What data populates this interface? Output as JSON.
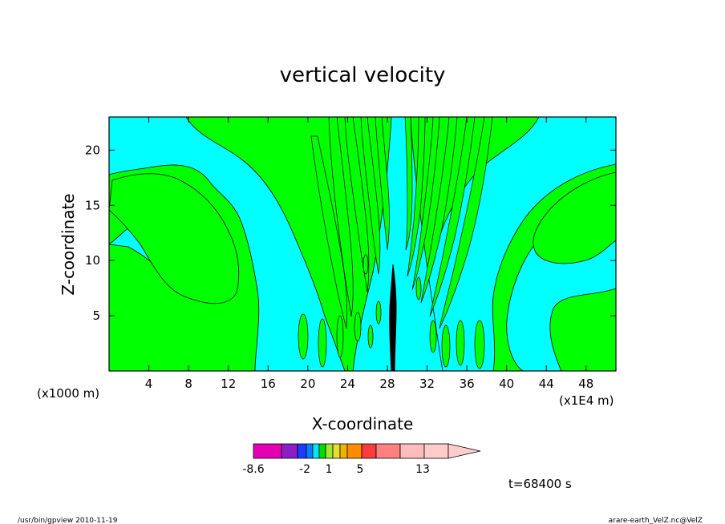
{
  "chart_data": {
    "type": "heatmap",
    "subtype": "filled-contour",
    "title": "vertical velocity",
    "xlabel": "X-coordinate",
    "ylabel": "Z-coordinate",
    "x_unit_left": "(x1000 m)",
    "x_unit_right": "(x1E4 m)",
    "x_ticks": [
      "4",
      "8",
      "12",
      "16",
      "20",
      "24",
      "28",
      "32",
      "36",
      "40",
      "44",
      "48"
    ],
    "x_tick_values": [
      4,
      8,
      12,
      16,
      20,
      24,
      28,
      32,
      36,
      40,
      44,
      48
    ],
    "xlim": [
      0,
      51
    ],
    "y_ticks": [
      "5",
      "10",
      "15",
      "20"
    ],
    "y_tick_values": [
      5,
      10,
      15,
      20
    ],
    "ylim": [
      0,
      23
    ],
    "time_label": "t=68400 s",
    "colorbar": {
      "tick_labels": [
        "-8.6",
        "-2",
        "1",
        "5",
        "13"
      ],
      "colors": [
        "#e600b4",
        "#8c1ec8",
        "#1e3cff",
        "#0080ff",
        "#00e6ff",
        "#00dc00",
        "#a0e632",
        "#e6dc32",
        "#f0b400",
        "#ff8c00",
        "#fa3c3c",
        "#ff8080",
        "#ffbcbc",
        "#ffcccc"
      ],
      "extend": "max"
    },
    "dominant_fields": {
      "green_color": "#00ff00",
      "cyan_color": "#00ffff",
      "updraft_color": "#000000"
    }
  },
  "footer": {
    "left": "/usr/bin/gpview   2010-11-19",
    "right": "arare-earth_VelZ.nc@VelZ"
  }
}
